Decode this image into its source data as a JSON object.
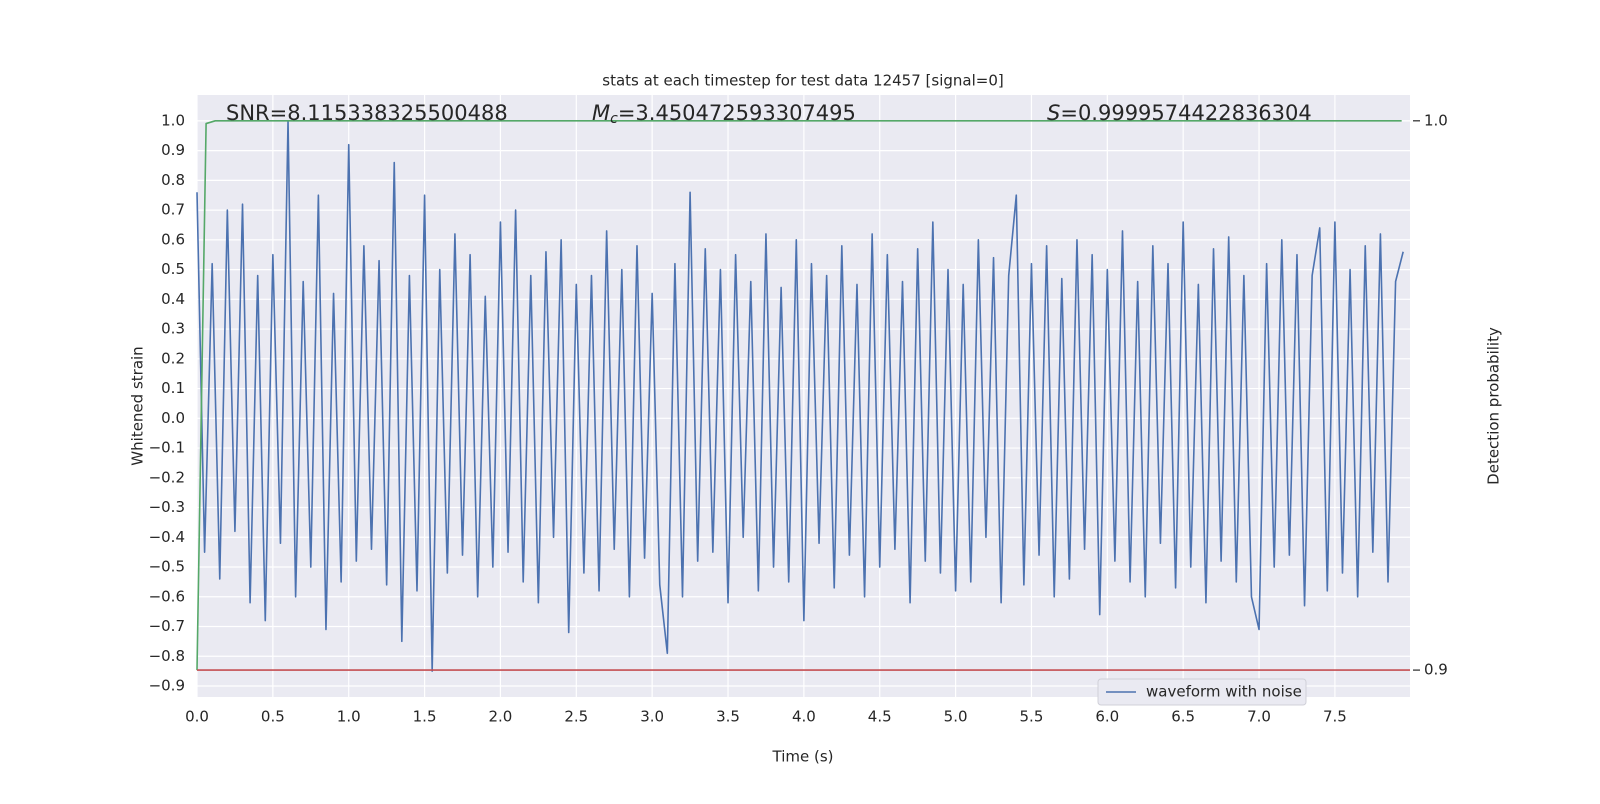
{
  "chart_data": {
    "type": "line",
    "title": "stats at each timestep for test data 12457 [signal=0]",
    "xlabel": "Time (s)",
    "ylabel": "Whitened strain",
    "y2label": "Detection probability",
    "annotations": [
      {
        "text": "SNR=8.115338325500488"
      },
      {
        "symbol": "M",
        "subscript": "c",
        "text": "=3.450472593307495"
      },
      {
        "symbol": "S",
        "text": "=0.9999574422836304"
      }
    ],
    "grid": true,
    "legend": "lower right",
    "background": "#eaeaf2",
    "xlim": [
      0,
      7.995
    ],
    "ylim": [
      -0.937,
      1.087
    ],
    "y2lim": [
      0.8951,
      1.0047
    ],
    "xticks": [
      {
        "value": 0,
        "label": "0.0"
      },
      0.5,
      {
        "value": 1,
        "label": "1.0"
      },
      1.5,
      {
        "value": 2,
        "label": "2.0"
      },
      2.5,
      {
        "value": 3,
        "label": "3.0"
      },
      3.5,
      {
        "value": 4,
        "label": "4.0"
      },
      4.5,
      {
        "value": 5,
        "label": "5.0"
      },
      5.5,
      {
        "value": 6,
        "label": "6.0"
      },
      6.5,
      {
        "value": 7,
        "label": "7.0"
      },
      7.5
    ],
    "yticks": [
      {
        "value": -0.9,
        "label": "−0.9"
      },
      {
        "value": -0.8,
        "label": "−0.8"
      },
      {
        "value": -0.7,
        "label": "−0.7"
      },
      {
        "value": -0.6,
        "label": "−0.6"
      },
      {
        "value": -0.5,
        "label": "−0.5"
      },
      {
        "value": -0.4,
        "label": "−0.4"
      },
      {
        "value": -0.3,
        "label": "−0.3"
      },
      {
        "value": -0.2,
        "label": "−0.2"
      },
      {
        "value": -0.1,
        "label": "−0.1"
      },
      {
        "value": 0,
        "label": "0.0"
      },
      0.1,
      0.2,
      0.3,
      0.4,
      0.5,
      0.6,
      0.7,
      0.8,
      0.9,
      {
        "value": 1,
        "label": "1.0"
      }
    ],
    "y2ticks": [
      0.9,
      {
        "value": 1,
        "label": "1.0"
      }
    ],
    "series": [
      {
        "name": "waveform with noise",
        "color": "#4c72b0",
        "x": [
          0,
          0.05,
          0.1,
          0.15,
          0.2,
          0.25,
          0.3,
          0.35,
          0.4,
          0.45,
          0.5,
          0.55,
          0.6,
          0.65,
          0.7,
          0.75,
          0.8,
          0.85,
          0.9,
          0.95,
          1,
          1.05,
          1.1,
          1.15,
          1.2,
          1.25,
          1.3,
          1.35,
          1.4,
          1.45,
          1.5,
          1.55,
          1.6,
          1.65,
          1.7,
          1.75,
          1.8,
          1.85,
          1.9,
          1.95,
          2,
          2.05,
          2.1,
          2.15,
          2.2,
          2.25,
          2.3,
          2.35,
          2.4,
          2.45,
          2.5,
          2.55,
          2.6,
          2.65,
          2.7,
          2.75,
          2.8,
          2.85,
          2.9,
          2.95,
          3,
          3.05,
          3.1,
          3.15,
          3.2,
          3.25,
          3.3,
          3.35,
          3.4,
          3.45,
          3.5,
          3.55,
          3.6,
          3.65,
          3.7,
          3.75,
          3.8,
          3.85,
          3.9,
          3.95,
          4,
          4.05,
          4.1,
          4.15,
          4.2,
          4.25,
          4.3,
          4.35,
          4.4,
          4.45,
          4.5,
          4.55,
          4.6,
          4.65,
          4.7,
          4.75,
          4.8,
          4.85,
          4.9,
          4.95,
          5,
          5.05,
          5.1,
          5.15,
          5.2,
          5.25,
          5.3,
          5.35,
          5.4,
          5.45,
          5.5,
          5.55,
          5.6,
          5.65,
          5.7,
          5.75,
          5.8,
          5.85,
          5.9,
          5.95,
          6,
          6.05,
          6.1,
          6.15,
          6.2,
          6.25,
          6.3,
          6.35,
          6.4,
          6.45,
          6.5,
          6.55,
          6.6,
          6.65,
          6.7,
          6.75,
          6.8,
          6.85,
          6.9,
          6.95,
          7,
          7.05,
          7.1,
          7.15,
          7.2,
          7.25,
          7.3,
          7.35,
          7.4,
          7.45,
          7.5,
          7.55,
          7.6,
          7.65,
          7.7,
          7.75,
          7.8,
          7.85,
          7.9,
          7.95
        ],
        "values": [
          0.76,
          -0.45,
          0.52,
          -0.54,
          0.7,
          -0.38,
          0.72,
          -0.62,
          0.48,
          -0.68,
          0.55,
          -0.42,
          1.0,
          -0.6,
          0.46,
          -0.5,
          0.75,
          -0.71,
          0.42,
          -0.55,
          0.92,
          -0.48,
          0.58,
          -0.44,
          0.53,
          -0.56,
          0.86,
          -0.75,
          0.48,
          -0.58,
          0.75,
          -0.85,
          0.5,
          -0.52,
          0.62,
          -0.46,
          0.55,
          -0.6,
          0.41,
          -0.5,
          0.66,
          -0.45,
          0.7,
          -0.55,
          0.48,
          -0.62,
          0.56,
          -0.4,
          0.6,
          -0.72,
          0.45,
          -0.52,
          0.48,
          -0.58,
          0.63,
          -0.44,
          0.5,
          -0.6,
          0.58,
          -0.47,
          0.42,
          -0.56,
          -0.79,
          0.52,
          -0.6,
          0.76,
          -0.48,
          0.57,
          -0.45,
          0.5,
          -0.62,
          0.55,
          -0.4,
          0.46,
          -0.58,
          0.62,
          -0.5,
          0.44,
          -0.55,
          0.6,
          -0.68,
          0.52,
          -0.42,
          0.48,
          -0.57,
          0.58,
          -0.46,
          0.45,
          -0.6,
          0.62,
          -0.5,
          0.55,
          -0.44,
          0.46,
          -0.62,
          0.57,
          -0.48,
          0.66,
          -0.52,
          0.5,
          -0.58,
          0.45,
          -0.55,
          0.6,
          -0.4,
          0.54,
          -0.62,
          0.48,
          0.75,
          -0.56,
          0.52,
          -0.46,
          0.58,
          -0.6,
          0.47,
          -0.54,
          0.6,
          -0.44,
          0.55,
          -0.66,
          0.5,
          -0.48,
          0.63,
          -0.55,
          0.46,
          -0.6,
          0.58,
          -0.42,
          0.52,
          -0.57,
          0.66,
          -0.5,
          0.45,
          -0.62,
          0.57,
          -0.48,
          0.61,
          -0.55,
          0.48,
          -0.6,
          -0.71,
          0.52,
          -0.5,
          0.6,
          -0.46,
          0.55,
          -0.63,
          0.48,
          0.64,
          -0.58,
          0.66,
          -0.52,
          0.5,
          -0.6,
          0.58,
          -0.45,
          0.62,
          -0.55,
          0.46,
          0.56
        ]
      },
      {
        "color": "#55a868",
        "axis": "y2",
        "x": [
          0,
          0.06,
          0.12,
          7.94
        ],
        "values": [
          0.9,
          0.9995,
          1.0,
          1.0
        ]
      },
      {
        "color": "#c44e52",
        "axis": "y2",
        "x": [
          0,
          7.995
        ],
        "values": [
          0.9,
          0.9
        ]
      }
    ]
  }
}
